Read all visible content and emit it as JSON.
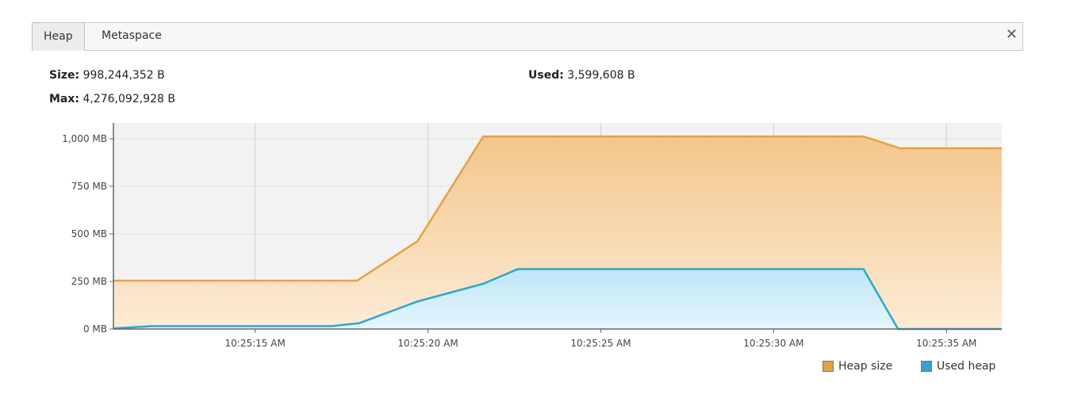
{
  "tabs": [
    {
      "label": "Heap",
      "selected": true
    },
    {
      "label": "Metaspace",
      "selected": false
    }
  ],
  "close_icon": "close-icon",
  "stats": {
    "size_label": "Size:",
    "size_value": "998,244,352 B",
    "max_label": "Max:",
    "max_value": "4,276,092,928 B",
    "used_label": "Used:",
    "used_value": "3,599,608 B"
  },
  "chart_data": {
    "type": "area",
    "y_unit": "MB",
    "ylim": [
      0,
      1080
    ],
    "xlim": [
      "10:25:10.9",
      "10:25:36.6"
    ],
    "y_ticks": [
      "0 MB",
      "250 MB",
      "500 MB",
      "750 MB",
      "1,000 MB"
    ],
    "y_tick_values": [
      0,
      250,
      500,
      750,
      1000
    ],
    "x_ticks": [
      "10:25:15 AM",
      "10:25:20 AM",
      "10:25:25 AM",
      "10:25:30 AM",
      "10:25:35 AM"
    ],
    "x_tick_values": [
      "10:25:15",
      "10:25:20",
      "10:25:25",
      "10:25:30",
      "10:25:35"
    ],
    "grid": true,
    "legend": "bottom-right",
    "series": [
      {
        "name": "Heap size",
        "color": "#e8a040",
        "points": [
          [
            "10:25:10.9",
            254
          ],
          [
            "10:25:17.95",
            254
          ],
          [
            "10:25:19.7",
            462
          ],
          [
            "10:25:21.6",
            1012
          ],
          [
            "10:25:32.6",
            1012
          ],
          [
            "10:25:33.65",
            950
          ],
          [
            "10:25:36.6",
            950
          ]
        ]
      },
      {
        "name": "Used heap",
        "color": "#2fa6cf",
        "points": [
          [
            "10:25:10.9",
            3
          ],
          [
            "10:25:12",
            15
          ],
          [
            "10:25:17.2",
            15
          ],
          [
            "10:25:18",
            30
          ],
          [
            "10:25:19.7",
            145
          ],
          [
            "10:25:21.6",
            238
          ],
          [
            "10:25:22.6",
            315
          ],
          [
            "10:25:32.6",
            315
          ],
          [
            "10:25:33.6",
            0
          ],
          [
            "10:25:36.6",
            0
          ]
        ]
      }
    ]
  }
}
